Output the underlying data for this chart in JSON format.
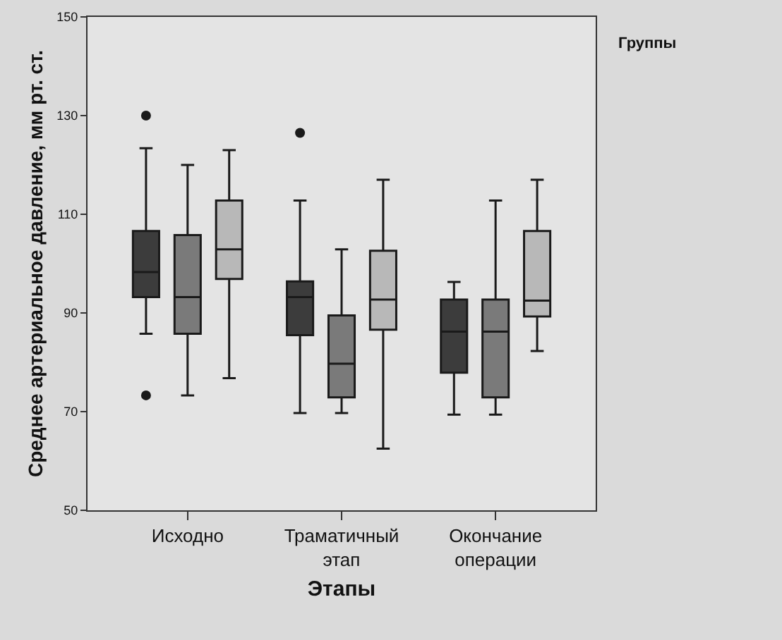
{
  "chart_data": {
    "type": "box",
    "xlabel": "Этапы",
    "ylabel": "Среднее артериальное давление, мм рт. ст.",
    "legend_title": "Группы",
    "grid": false,
    "categories": [
      "Исходно",
      "Траматичный этап",
      "Окончание операции"
    ],
    "ylim": [
      50,
      150
    ],
    "yticks": [
      50,
      70,
      90,
      110,
      130,
      150
    ],
    "series": [
      {
        "color": "#3c3c3c",
        "boxes": [
          {
            "low": 85.8,
            "q1": 93.2,
            "median": 98.3,
            "q3": 106.6,
            "high": 123.4,
            "outliers": [
              130,
              73.3
            ]
          },
          {
            "low": 69.7,
            "q1": 85.5,
            "median": 93.2,
            "q3": 96.4,
            "high": 112.8,
            "outliers": [
              126.5
            ]
          },
          {
            "low": 69.4,
            "q1": 77.9,
            "median": 86.2,
            "q3": 92.7,
            "high": 96.3
          }
        ]
      },
      {
        "color": "#7a7a7a",
        "boxes": [
          {
            "low": 73.3,
            "q1": 85.8,
            "median": 93.2,
            "q3": 105.8,
            "high": 120
          },
          {
            "low": 69.7,
            "q1": 72.9,
            "median": 79.7,
            "q3": 89.5,
            "high": 102.9
          },
          {
            "low": 69.4,
            "q1": 72.9,
            "median": 86.2,
            "q3": 92.7,
            "high": 112.8
          }
        ]
      },
      {
        "color": "#b8b8b8",
        "boxes": [
          {
            "low": 76.8,
            "q1": 96.9,
            "median": 102.9,
            "q3": 112.8,
            "high": 123
          },
          {
            "low": 62.5,
            "q1": 86.6,
            "median": 92.7,
            "q3": 102.6,
            "high": 117
          },
          {
            "low": 82.3,
            "q1": 89.3,
            "median": 92.5,
            "q3": 106.6,
            "high": 117
          }
        ]
      }
    ]
  }
}
